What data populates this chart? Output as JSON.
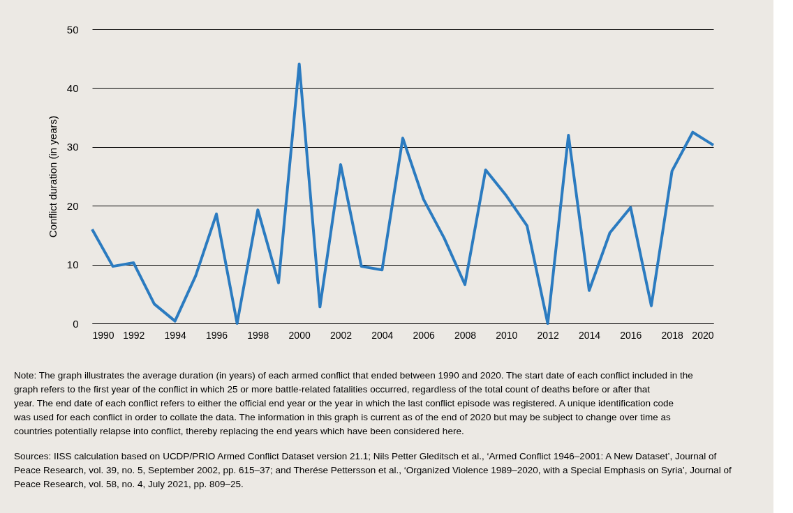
{
  "chart_data": {
    "type": "line",
    "x": [
      1990,
      1991,
      1992,
      1993,
      1994,
      1995,
      1996,
      1997,
      1998,
      1999,
      2000,
      2001,
      2002,
      2003,
      2004,
      2005,
      2006,
      2007,
      2008,
      2009,
      2010,
      2011,
      2012,
      2013,
      2014,
      2015,
      2016,
      2017,
      2018,
      2019,
      2020
    ],
    "series": [
      {
        "color": "#2b7bc0",
        "values": [
          16.0,
          9.7,
          10.3,
          3.3,
          0.4,
          8.1,
          18.6,
          0,
          19.3,
          6.9,
          44.1,
          2.8,
          27.0,
          9.7,
          9.1,
          31.5,
          21.1,
          14.5,
          6.6,
          26.1,
          21.7,
          16.6,
          0,
          32.0,
          5.6,
          15.4,
          19.7,
          3.0,
          25.9,
          32.5,
          30.3
        ]
      }
    ],
    "ylabel": "Conflict duration (in years)",
    "xlim": [
      1990,
      2020
    ],
    "xticks": [
      1990,
      1992,
      1994,
      1996,
      1998,
      2000,
      2002,
      2004,
      2006,
      2008,
      2010,
      2012,
      2014,
      2016,
      2018,
      2020
    ],
    "ylim": [
      0,
      50
    ],
    "yticks": [
      0,
      10,
      20,
      30,
      40,
      50
    ],
    "grid": "y",
    "marker": "none",
    "line_style": "solid",
    "annotations": [
      "Note: The graph illustrates the average duration (in years) of each armed conflict that ended between 1990 and 2020. The start date of each conflict included in the graph refers to the first year of the conflict in which 25 or more battle-related fatalities occurred, regardless of the total count of deaths before or after that year. The end date of each conflict refers to either the official end year or the year in which the last conflict episode was registered. A unique identification code was used for each conflict in order to collate the data. The information in this graph is current as of the end of 2020 but may be subject to change over time as countries potentially relapse into conflict, thereby replacing the end years which have been considered here.",
      "Sources: IISS calculation based on UCDP/PRIO Armed Conflict Dataset version 21.1; Nils Petter Gleditsch et al., ‘Armed Conflict 1946–2001: A New Dataset’, Journal of Peace Research, vol. 39, no. 5, September 2002, pp. 615–37; and Therése Pettersson et al., ‘Organized Violence 1989–2020, with a Special Emphasis on Syria’, Journal of Peace Research, vol. 58, no. 4, July 2021, pp. 809–25."
    ]
  }
}
